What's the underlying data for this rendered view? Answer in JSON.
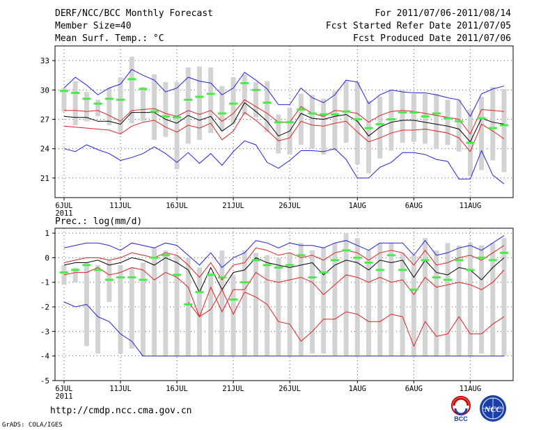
{
  "header": {
    "title": "DERF/NCC/BCC Monthly Forecast",
    "member_size": "Member Size=40",
    "period": "For 2011/07/06-2011/08/14",
    "started_refer": "Fcst Started Refer Date 2011/07/05",
    "produced": "Fcst Produced Date 2011/07/06"
  },
  "footer": {
    "url": "http://cmdp.ncc.cma.gov.cn",
    "grads": "GrADS: COLA/IGES",
    "logo_left_text": "BCC",
    "logo_right_text": "NCC"
  },
  "colors": {
    "box": "#d3d3d3",
    "median": "#44ee44",
    "mean": "#000000",
    "inner": "#dd2222",
    "outer": "#2222dd",
    "grid": "#555555"
  },
  "chart_data": [
    {
      "id": "temp",
      "type": "line",
      "title": "Mean Surf. Temp.: °C",
      "xlabel": "",
      "ylabel": "°C",
      "ylim": [
        19,
        34.5
      ],
      "yticks": [
        21,
        24,
        27,
        30,
        33
      ],
      "x_days": 40,
      "xticks": [
        {
          "day": 0,
          "label": "6JUL",
          "sub": "2011"
        },
        {
          "day": 5,
          "label": "11JUL"
        },
        {
          "day": 10,
          "label": "16JUL"
        },
        {
          "day": 15,
          "label": "21JUL"
        },
        {
          "day": 20,
          "label": "26JUL"
        },
        {
          "day": 26,
          "label": "1AUG"
        },
        {
          "day": 31,
          "label": "6AUG"
        },
        {
          "day": 36,
          "label": "11AUG"
        }
      ],
      "series": [
        {
          "name": "upper",
          "role": "outer",
          "values": [
            30.2,
            31.3,
            30.5,
            29.5,
            30.2,
            30.6,
            32.1,
            31.5,
            31.0,
            29.8,
            30.2,
            31.3,
            30.9,
            30.7,
            29.5,
            30.2,
            31.8,
            31.0,
            30.1,
            28.5,
            28.5,
            30.2,
            29.2,
            28.7,
            29.5,
            31.0,
            30.8,
            28.6,
            29.5,
            30.0,
            29.8,
            29.7,
            29.7,
            29.5,
            29.2,
            29.0,
            27.3,
            29.6,
            30.1,
            30.4
          ]
        },
        {
          "name": "upper-inner",
          "role": "inner",
          "values": [
            27.9,
            27.9,
            27.8,
            27.9,
            27.4,
            26.8,
            27.9,
            28.0,
            28.1,
            27.6,
            27.3,
            27.9,
            27.5,
            27.9,
            26.8,
            27.6,
            29.0,
            28.3,
            27.6,
            26.7,
            26.7,
            28.3,
            27.6,
            27.3,
            27.9,
            27.8,
            27.6,
            26.7,
            27.4,
            27.8,
            27.9,
            27.8,
            27.6,
            27.4,
            27.2,
            27.0,
            25.5,
            28.0,
            27.9,
            27.8
          ]
        },
        {
          "name": "mean",
          "role": "mean",
          "values": [
            27.3,
            27.2,
            27.2,
            26.8,
            26.8,
            26.5,
            27.7,
            27.7,
            27.7,
            27.0,
            26.6,
            27.4,
            26.9,
            27.3,
            25.8,
            26.6,
            28.7,
            27.8,
            26.8,
            25.3,
            25.8,
            27.6,
            27.1,
            27.0,
            27.3,
            27.5,
            26.8,
            25.3,
            26.2,
            26.7,
            26.9,
            26.9,
            26.7,
            26.5,
            26.3,
            26.0,
            24.7,
            27.1,
            26.7,
            26.5
          ]
        },
        {
          "name": "lower-inner",
          "role": "inner",
          "values": [
            26.3,
            26.2,
            26.1,
            26.0,
            25.9,
            25.5,
            26.3,
            26.7,
            26.9,
            26.2,
            25.7,
            26.4,
            26.1,
            26.6,
            24.9,
            25.8,
            27.7,
            26.9,
            25.9,
            24.8,
            25.1,
            26.8,
            26.4,
            26.3,
            26.6,
            26.8,
            25.7,
            24.7,
            25.1,
            25.6,
            25.9,
            25.9,
            26.0,
            25.8,
            25.6,
            25.1,
            23.7,
            26.5,
            25.8,
            25.0
          ]
        },
        {
          "name": "lower",
          "role": "outer",
          "values": [
            24.0,
            23.7,
            24.4,
            23.9,
            23.5,
            22.8,
            23.1,
            23.5,
            24.2,
            23.5,
            22.6,
            23.6,
            22.5,
            23.5,
            22.3,
            23.7,
            24.8,
            24.4,
            22.6,
            22.0,
            22.8,
            23.8,
            23.8,
            23.7,
            24.0,
            22.9,
            21.0,
            21.0,
            22.1,
            22.6,
            23.6,
            23.6,
            23.4,
            22.9,
            22.7,
            20.9,
            20.9,
            23.8,
            21.3,
            20.4
          ]
        }
      ],
      "median": [
        29.9,
        29.7,
        29.1,
        28.6,
        29.1,
        29.0,
        31.1,
        30.1,
        27.8,
        27.3,
        27.2,
        29.0,
        29.3,
        29.6,
        27.6,
        28.6,
        30.7,
        30.0,
        28.7,
        26.7,
        26.7,
        28.0,
        27.6,
        27.5,
        27.5,
        27.8,
        27.0,
        26.1,
        26.5,
        27.0,
        27.7,
        27.7,
        27.3,
        27.6,
        27.1,
        26.8,
        24.6,
        27.1,
        26.1,
        26.4
      ],
      "box_top": [
        30.2,
        30.9,
        29.8,
        29.0,
        30.2,
        31.3,
        33.4,
        30.3,
        31.6,
        30.8,
        30.8,
        32.3,
        32.4,
        32.3,
        30.4,
        31.3,
        31.6,
        30.8,
        30.9,
        27.5,
        28.2,
        29.6,
        29.5,
        29.1,
        29.9,
        30.9,
        30.8,
        28.9,
        29.3,
        30.0,
        30.0,
        29.6,
        29.6,
        29.6,
        29.0,
        29.0,
        28.0,
        29.3,
        30.3,
        30.1
      ],
      "box_bottom": [
        27.8,
        26.4,
        26.8,
        27.3,
        26.4,
        25.6,
        26.6,
        26.8,
        24.9,
        25.2,
        21.9,
        24.5,
        24.9,
        25.6,
        25.8,
        26.5,
        27.4,
        27.2,
        25.7,
        23.5,
        23.4,
        24.4,
        24.0,
        23.4,
        23.8,
        24.6,
        22.4,
        21.5,
        23.0,
        23.8,
        24.6,
        24.7,
        24.5,
        24.0,
        24.4,
        23.7,
        21.2,
        21.8,
        22.8,
        21.6
      ]
    },
    {
      "id": "prec",
      "type": "line",
      "title": "Prec.: log(mm/d)",
      "xlabel": "",
      "ylabel": "log(mm/d)",
      "ylim": [
        -5,
        1.2
      ],
      "yticks": [
        -5,
        -4,
        -3,
        -2,
        -1,
        0,
        1
      ],
      "x_days": 40,
      "xticks": [
        {
          "day": 0,
          "label": "6JUL",
          "sub": "2011"
        },
        {
          "day": 5,
          "label": "11JUL"
        },
        {
          "day": 10,
          "label": "16JUL"
        },
        {
          "day": 15,
          "label": "21JUL"
        },
        {
          "day": 20,
          "label": "26JUL"
        },
        {
          "day": 26,
          "label": "1AUG"
        },
        {
          "day": 31,
          "label": "6AUG"
        },
        {
          "day": 36,
          "label": "11AUG"
        }
      ],
      "series": [
        {
          "name": "upper",
          "role": "outer",
          "values": [
            0.4,
            0.5,
            0.6,
            0.6,
            0.5,
            0.3,
            0.6,
            0.5,
            0.4,
            0.6,
            0.5,
            0.1,
            -0.3,
            0.2,
            -0.4,
            0.0,
            0.2,
            0.7,
            0.6,
            0.4,
            0.6,
            0.5,
            0.5,
            0.4,
            0.6,
            0.7,
            0.5,
            0.3,
            0.6,
            0.6,
            0.6,
            0.1,
            0.7,
            0.1,
            0.2,
            0.4,
            0.5,
            0.3,
            0.6,
            0.9
          ]
        },
        {
          "name": "upper-inner",
          "role": "inner",
          "values": [
            -0.2,
            -0.1,
            0.0,
            0.0,
            -0.1,
            0.0,
            0.2,
            0.1,
            0.0,
            0.2,
            0.1,
            -0.3,
            -0.8,
            -0.2,
            -0.9,
            -0.3,
            -0.2,
            0.4,
            0.3,
            0.1,
            0.2,
            0.0,
            0.1,
            -0.1,
            0.2,
            0.3,
            0.2,
            -0.1,
            0.2,
            0.3,
            0.2,
            -0.3,
            0.3,
            -0.3,
            -0.2,
            0.0,
            0.1,
            -0.1,
            0.2,
            0.5
          ]
        },
        {
          "name": "mean",
          "role": "mean",
          "values": [
            -0.3,
            -0.2,
            -0.2,
            -0.1,
            -0.3,
            -0.2,
            0.0,
            -0.1,
            -0.3,
            0.0,
            -0.2,
            -0.5,
            -1.4,
            -0.4,
            -1.3,
            -0.6,
            -0.5,
            0.0,
            -0.2,
            -0.3,
            -0.4,
            -0.3,
            -0.2,
            -0.7,
            -0.3,
            -0.1,
            -0.2,
            -0.5,
            -0.1,
            -0.2,
            -0.1,
            -0.8,
            -0.1,
            -0.6,
            -0.7,
            -0.4,
            -0.5,
            -0.9,
            -0.4,
            0.0
          ]
        },
        {
          "name": "lower-inner",
          "role": "inner",
          "values": [
            -0.7,
            -0.6,
            -0.6,
            -0.4,
            -0.7,
            -0.6,
            -0.4,
            -0.5,
            -0.9,
            -0.6,
            -0.8,
            -1.2,
            -2.4,
            -1.2,
            -2.2,
            -1.3,
            -1.3,
            -0.6,
            -0.9,
            -1.0,
            -0.9,
            -0.8,
            -1.0,
            -1.5,
            -1.1,
            -0.7,
            -0.8,
            -1.0,
            -0.8,
            -1.0,
            -0.9,
            -1.5,
            -0.8,
            -1.2,
            -1.1,
            -1.0,
            -1.1,
            -1.3,
            -1.0,
            -0.5
          ]
        },
        {
          "name": "lower",
          "role": "outer",
          "values": [
            -1.8,
            -2.0,
            -1.9,
            -2.4,
            -2.6,
            -3.1,
            -3.4,
            -4.0,
            -4.0,
            -4.0,
            -4.0,
            -4.0,
            -4.0,
            -4.0,
            -4.0,
            -4.0,
            -4.0,
            -4.0,
            -4.0,
            -4.0,
            -4.0,
            -4.0,
            -4.0,
            -4.0,
            -4.0,
            -4.0,
            -4.0,
            -4.0,
            -4.0,
            -4.0,
            -4.0,
            -4.0,
            -4.0,
            -4.0,
            -4.0,
            -4.0,
            -4.0,
            -4.0,
            -4.0,
            -4.0
          ]
        },
        {
          "name": "lowest-inner",
          "role": "inner",
          "values": [
            null,
            null,
            null,
            null,
            null,
            null,
            null,
            null,
            null,
            null,
            null,
            -1.8,
            -2.4,
            -2.1,
            -1.3,
            -2.3,
            -1.4,
            -1.6,
            -1.9,
            -2.6,
            -2.7,
            -3.4,
            -3.0,
            -2.5,
            -2.5,
            -2.2,
            -2.3,
            -2.6,
            -2.6,
            -2.3,
            -2.4,
            -3.6,
            -2.6,
            -3.2,
            -3.1,
            -2.4,
            -3.1,
            -3.1,
            -2.7,
            -2.4
          ]
        }
      ],
      "median": [
        -0.6,
        -0.5,
        -0.3,
        -0.5,
        -0.9,
        -0.8,
        -0.8,
        -0.9,
        0.0,
        0.1,
        -0.7,
        -1.9,
        -1.4,
        -0.7,
        -0.8,
        -1.7,
        -1.0,
        -0.1,
        -0.3,
        -0.4,
        -0.3,
        0.1,
        -0.8,
        -0.6,
        -0.1,
        0.3,
        0.0,
        -0.2,
        -0.5,
        0.1,
        -0.5,
        -1.3,
        -0.1,
        -0.8,
        -0.9,
        -0.1,
        -0.5,
        0.0,
        -0.1,
        0.2
      ],
      "box_top": [
        -0.3,
        -0.4,
        -0.2,
        -0.3,
        -0.1,
        -0.3,
        -0.4,
        -0.2,
        0.4,
        0.3,
        0.1,
        0.0,
        -0.4,
        -0.6,
        0.3,
        -0.7,
        0.3,
        0.2,
        0.1,
        0.0,
        0.2,
        0.6,
        0.3,
        0.4,
        0.6,
        1.0,
        0.8,
        0.3,
        0.6,
        0.6,
        0.2,
        0.1,
        0.8,
        0.3,
        0.6,
        0.5,
        0.6,
        0.5,
        0.6,
        0.8
      ],
      "box_bottom": [
        -1.1,
        -1.0,
        -3.6,
        -3.9,
        -1.8,
        -3.9,
        -3.7,
        -4.0,
        -4.0,
        -4.0,
        -4.0,
        -4.0,
        -4.0,
        -4.0,
        -4.0,
        -4.0,
        -4.0,
        -4.0,
        -4.0,
        -4.0,
        -4.0,
        -4.0,
        -3.9,
        -3.9,
        -4.0,
        -4.0,
        -4.0,
        -4.0,
        -4.0,
        -4.0,
        -4.0,
        -4.0,
        -4.0,
        -4.0,
        -4.0,
        -4.0,
        -4.0,
        -3.9,
        -4.0,
        -4.0
      ]
    }
  ]
}
